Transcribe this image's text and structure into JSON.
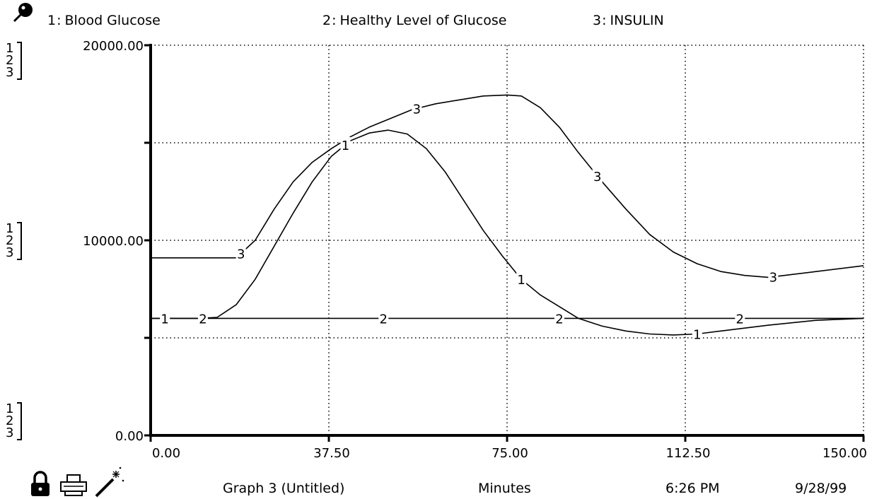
{
  "legend": [
    {
      "num": "1",
      "sep": ":",
      "name": "Blood Glucose"
    },
    {
      "num": "2",
      "sep": ":",
      "name": "Healthy Level of Glucose"
    },
    {
      "num": "3",
      "sep": ":",
      "name": "INSULIN"
    }
  ],
  "scale_key": [
    "1",
    "2",
    "3"
  ],
  "footer": {
    "graph_title": "Graph 3 (Untitled)",
    "x_unit": "Minutes",
    "time": "6:26 PM",
    "date": "9/28/99"
  },
  "icons": [
    "pin-icon",
    "lock-icon",
    "printer-icon",
    "magic-wand-icon"
  ],
  "chart_data": {
    "type": "line",
    "xlim": [
      0,
      150
    ],
    "ylim": [
      0,
      20000
    ],
    "x_ticks": [
      "0.00",
      "37.50",
      "75.00",
      "112.50",
      "150.00"
    ],
    "y_ticks": [
      "0.00",
      "10000.00",
      "20000.00"
    ],
    "x_tick_values": [
      0,
      37.5,
      75,
      112.5,
      150
    ],
    "y_tick_values": [
      0,
      10000,
      20000
    ],
    "grid": true,
    "xlabel": "Minutes",
    "series": [
      {
        "name": "Blood Glucose",
        "marker": "1",
        "x": [
          0,
          5,
          10,
          14,
          18,
          22,
          26,
          30,
          34,
          38,
          42,
          46,
          50,
          54,
          58,
          62,
          66,
          70,
          74,
          78,
          82,
          86,
          90,
          95,
          100,
          105,
          110,
          115,
          120,
          130,
          140,
          150
        ],
        "y": [
          6000,
          6000,
          6000,
          6050,
          6700,
          8000,
          9700,
          11400,
          13000,
          14300,
          15100,
          15500,
          15650,
          15450,
          14700,
          13500,
          12000,
          10500,
          9200,
          8000,
          7200,
          6600,
          6000,
          5600,
          5350,
          5200,
          5150,
          5200,
          5350,
          5650,
          5900,
          6000
        ]
      },
      {
        "name": "Healthy Level of Glucose",
        "marker": "2",
        "x": [
          0,
          150
        ],
        "y": [
          6000,
          6000
        ]
      },
      {
        "name": "INSULIN",
        "marker": "3",
        "x": [
          0,
          10,
          18,
          22,
          26,
          30,
          34,
          38,
          42,
          46,
          50,
          55,
          60,
          65,
          70,
          75,
          78,
          82,
          86,
          90,
          95,
          100,
          105,
          110,
          115,
          120,
          125,
          130,
          135,
          140,
          150
        ],
        "y": [
          9100,
          9100,
          9100,
          10000,
          11600,
          13000,
          14000,
          14700,
          15300,
          15800,
          16200,
          16700,
          17000,
          17200,
          17400,
          17450,
          17400,
          16800,
          15800,
          14500,
          13000,
          11600,
          10300,
          9400,
          8800,
          8400,
          8200,
          8100,
          8250,
          8400,
          8700
        ]
      }
    ],
    "markers": [
      {
        "series": 0,
        "x": [
          3,
          41,
          78,
          115
        ]
      },
      {
        "series": 1,
        "x": [
          11,
          49,
          86,
          124
        ]
      },
      {
        "series": 2,
        "x": [
          19,
          56,
          94,
          131
        ]
      }
    ]
  }
}
